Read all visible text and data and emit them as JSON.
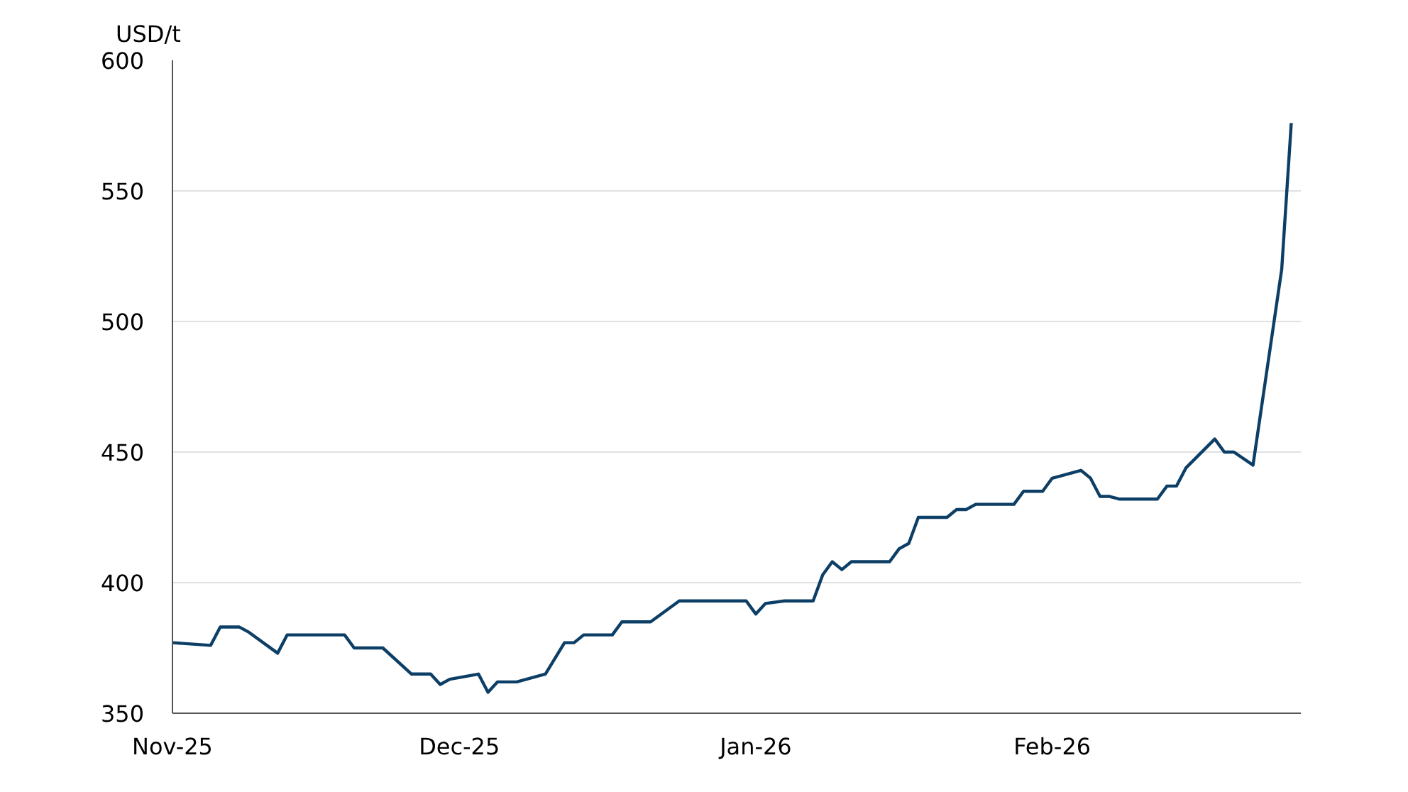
{
  "chart_data": {
    "type": "line",
    "ylabel": "USD/t",
    "x": [
      "2025-11-01",
      "2025-11-05",
      "2025-11-06",
      "2025-11-08",
      "2025-11-09",
      "2025-11-12",
      "2025-11-13",
      "2025-11-19",
      "2025-11-20",
      "2025-11-23",
      "2025-11-26",
      "2025-11-28",
      "2025-11-29",
      "2025-11-30",
      "2025-12-03",
      "2025-12-04",
      "2025-12-05",
      "2025-12-07",
      "2025-12-10",
      "2025-12-12",
      "2025-12-13",
      "2025-12-14",
      "2025-12-17",
      "2025-12-18",
      "2025-12-21",
      "2025-12-24",
      "2025-12-31",
      "2026-01-01",
      "2026-01-02",
      "2026-01-04",
      "2026-01-07",
      "2026-01-08",
      "2026-01-09",
      "2026-01-10",
      "2026-01-11",
      "2026-01-15",
      "2026-01-16",
      "2026-01-17",
      "2026-01-18",
      "2026-01-21",
      "2026-01-22",
      "2026-01-23",
      "2026-01-24",
      "2026-01-28",
      "2026-01-29",
      "2026-01-31",
      "2026-02-01",
      "2026-02-04",
      "2026-02-05",
      "2026-02-06",
      "2026-02-07",
      "2026-02-08",
      "2026-02-12",
      "2026-02-13",
      "2026-02-14",
      "2026-02-15",
      "2026-02-18",
      "2026-02-19",
      "2026-02-20",
      "2026-02-22",
      "2026-02-25",
      "2026-02-26"
    ],
    "series": [
      {
        "color": "#0d3f66",
        "values": [
          377,
          376,
          383,
          383,
          381,
          373,
          380,
          380,
          375,
          375,
          365,
          365,
          361,
          363,
          365,
          358,
          362,
          362,
          365,
          377,
          377,
          380,
          380,
          385,
          385,
          393,
          393,
          388,
          392,
          393,
          393,
          403,
          408,
          405,
          408,
          408,
          413,
          415,
          425,
          425,
          428,
          428,
          430,
          430,
          435,
          435,
          440,
          443,
          440,
          433,
          433,
          432,
          432,
          437,
          437,
          444,
          455,
          450,
          450,
          445,
          520,
          576
        ]
      }
    ],
    "xlim": [
      "2025-11-01",
      "2026-02-27"
    ],
    "xticks": [
      {
        "value": "2025-11-01",
        "label": "Nov-25"
      },
      {
        "value": "2025-12-01",
        "label": "Dec-25"
      },
      {
        "value": "2026-01-01",
        "label": "Jan-26"
      },
      {
        "value": "2026-02-01",
        "label": "Feb-26"
      }
    ],
    "ylim": [
      350,
      600
    ],
    "yticks": [
      350,
      400,
      450,
      500,
      550,
      600
    ],
    "grid": "y",
    "marker": "none",
    "line_style": "solid"
  }
}
